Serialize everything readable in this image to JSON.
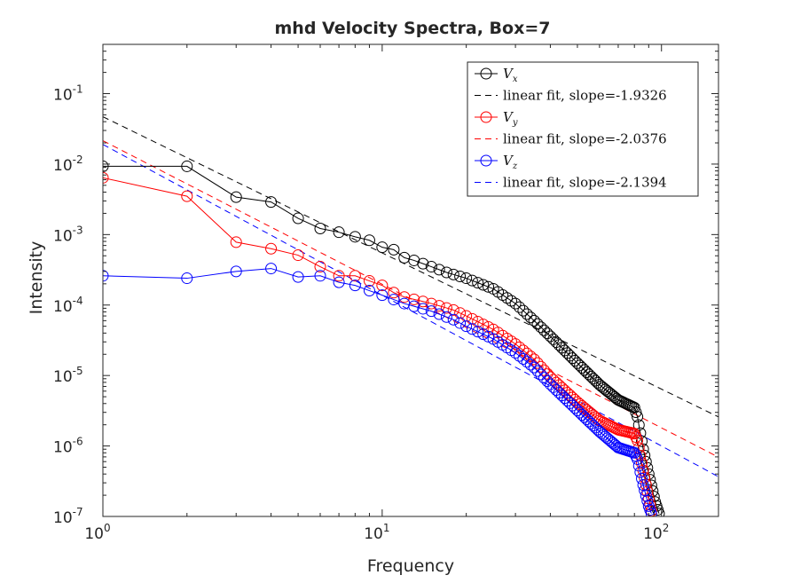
{
  "chart_data": {
    "type": "line",
    "title": "mhd Velocity Spectra, Box=7",
    "xlabel": "Frequency",
    "ylabel": "Intensity",
    "xscale": "log",
    "yscale": "log",
    "xlim": [
      1,
      160
    ],
    "ylim": [
      1e-07,
      0.5
    ],
    "grid": false,
    "legend_position": "top-right",
    "x_ticks": [
      {
        "value": 1,
        "base": "10",
        "exp": "0"
      },
      {
        "value": 10,
        "base": "10",
        "exp": "1"
      },
      {
        "value": 100,
        "base": "10",
        "exp": "2"
      }
    ],
    "y_ticks": [
      {
        "value": 1e-07,
        "base": "10",
        "exp": "-7"
      },
      {
        "value": 1e-06,
        "base": "10",
        "exp": "-6"
      },
      {
        "value": 1e-05,
        "base": "10",
        "exp": "-5"
      },
      {
        "value": 0.0001,
        "base": "10",
        "exp": "-4"
      },
      {
        "value": 0.001,
        "base": "10",
        "exp": "-3"
      },
      {
        "value": 0.01,
        "base": "10",
        "exp": "-2"
      },
      {
        "value": 0.1,
        "base": "10",
        "exp": "-1"
      }
    ],
    "series": [
      {
        "name": "V_x",
        "label_base": "V",
        "label_sub": "x",
        "color": "#000000",
        "marker": "circle",
        "anchors": [
          [
            1,
            0.0093
          ],
          [
            2,
            0.0093
          ],
          [
            3,
            0.0034
          ],
          [
            4,
            0.0029
          ],
          [
            5,
            0.0017
          ],
          [
            6,
            0.00122
          ],
          [
            7,
            0.00108
          ],
          [
            8,
            0.00093
          ],
          [
            9,
            0.00083
          ],
          [
            10,
            0.00066
          ],
          [
            11,
            0.00061
          ],
          [
            12,
            0.00047
          ],
          [
            13,
            0.00043
          ],
          [
            15,
            0.00035
          ],
          [
            17,
            0.00029
          ],
          [
            20,
            0.00024
          ],
          [
            25,
            0.00017
          ],
          [
            30,
            0.000105
          ],
          [
            35,
            6e-05
          ],
          [
            40,
            3.6e-05
          ],
          [
            50,
            1.5e-05
          ],
          [
            60,
            7.4e-06
          ],
          [
            70,
            4.5e-06
          ],
          [
            80,
            3.5e-06
          ],
          [
            82,
            2.6e-06
          ],
          [
            86,
            9e-07
          ],
          [
            90,
            4e-07
          ],
          [
            95,
            1.6e-07
          ],
          [
            98,
            1.1e-07
          ]
        ],
        "fit": {
          "name": "linear fit, slope=-1.9326",
          "slope": -1.9326,
          "intercept_at_1": 0.047
        }
      },
      {
        "name": "V_y",
        "label_base": "V",
        "label_sub": "y",
        "color": "#ff0000",
        "marker": "circle",
        "anchors": [
          [
            1,
            0.0064
          ],
          [
            2,
            0.0035
          ],
          [
            3,
            0.00078
          ],
          [
            4,
            0.00063
          ],
          [
            5,
            0.00051
          ],
          [
            6,
            0.00035
          ],
          [
            7,
            0.00026
          ],
          [
            8,
            0.00026
          ],
          [
            9,
            0.00022
          ],
          [
            10,
            0.00019
          ],
          [
            11,
            0.00015
          ],
          [
            12,
            0.00013
          ],
          [
            15,
            0.000105
          ],
          [
            18,
            8.5e-05
          ],
          [
            20,
            7e-05
          ],
          [
            25,
            4.5e-05
          ],
          [
            30,
            2.8e-05
          ],
          [
            35,
            1.7e-05
          ],
          [
            40,
            9.5e-06
          ],
          [
            50,
            4.2e-06
          ],
          [
            60,
            2.3e-06
          ],
          [
            70,
            1.7e-06
          ],
          [
            80,
            1.5e-06
          ],
          [
            82,
            1.2e-06
          ],
          [
            86,
            4.5e-07
          ],
          [
            90,
            1.8e-07
          ],
          [
            92,
            1.2e-07
          ]
        ],
        "fit": {
          "name": "linear fit, slope=-2.0376",
          "slope": -2.0376,
          "intercept_at_1": 0.0215
        }
      },
      {
        "name": "V_z",
        "label_base": "V",
        "label_sub": "z",
        "color": "#0000ff",
        "marker": "circle",
        "anchors": [
          [
            1,
            0.00026
          ],
          [
            2,
            0.00024
          ],
          [
            3,
            0.0003
          ],
          [
            4,
            0.00033
          ],
          [
            5,
            0.00025
          ],
          [
            6,
            0.00026
          ],
          [
            7,
            0.00021
          ],
          [
            8,
            0.00019
          ],
          [
            9,
            0.00016
          ],
          [
            10,
            0.000138
          ],
          [
            12,
            0.000105
          ],
          [
            15,
            8.2e-05
          ],
          [
            18,
            6.2e-05
          ],
          [
            20,
            5e-05
          ],
          [
            25,
            3.3e-05
          ],
          [
            30,
            2.1e-05
          ],
          [
            35,
            1.3e-05
          ],
          [
            40,
            7.5e-06
          ],
          [
            50,
            3.2e-06
          ],
          [
            60,
            1.6e-06
          ],
          [
            70,
            9.5e-07
          ],
          [
            80,
            8e-07
          ],
          [
            82,
            6.5e-07
          ],
          [
            86,
            2.8e-07
          ],
          [
            90,
            1.4e-07
          ],
          [
            92,
            1.1e-07
          ]
        ],
        "fit": {
          "name": "linear fit, slope=-2.1394",
          "slope": -2.1394,
          "intercept_at_1": 0.019
        }
      }
    ]
  }
}
